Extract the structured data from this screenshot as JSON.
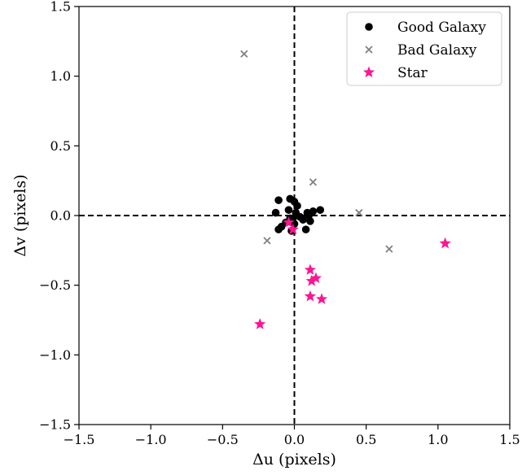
{
  "chart_data": {
    "type": "scatter",
    "xlabel": "Δu (pixels)",
    "ylabel": "Δv (pixels)",
    "xlim": [
      -1.5,
      1.5
    ],
    "ylim": [
      -1.5,
      1.5
    ],
    "xticks": [
      "−1.5",
      "−1.0",
      "−0.5",
      "0.0",
      "0.5",
      "1.0",
      "1.5"
    ],
    "yticks": [
      "−1.5",
      "−1.0",
      "−0.5",
      "0.0",
      "0.5",
      "1.0",
      "1.5"
    ],
    "xtick_values": [
      -1.5,
      -1.0,
      -0.5,
      0.0,
      0.5,
      1.0,
      1.5
    ],
    "ytick_values": [
      -1.5,
      -1.0,
      -0.5,
      0.0,
      0.5,
      1.0,
      1.5
    ],
    "grid": false,
    "reference_lines": {
      "x": 0,
      "y": 0,
      "style": "dashed"
    },
    "legend_position": "top-right",
    "series": [
      {
        "name": "Good Galaxy",
        "marker": "circle",
        "color": "#000000",
        "points": [
          [
            -0.11,
            0.11
          ],
          [
            -0.03,
            0.12
          ],
          [
            0.0,
            0.1
          ],
          [
            0.02,
            0.07
          ],
          [
            -0.13,
            0.02
          ],
          [
            -0.04,
            0.04
          ],
          [
            0.01,
            0.02
          ],
          [
            0.04,
            -0.01
          ],
          [
            0.06,
            -0.03
          ],
          [
            0.09,
            0.02
          ],
          [
            0.11,
            -0.04
          ],
          [
            0.13,
            0.03
          ],
          [
            0.18,
            0.04
          ],
          [
            -0.01,
            -0.02
          ],
          [
            -0.06,
            -0.05
          ],
          [
            -0.09,
            -0.08
          ],
          [
            -0.11,
            -0.1
          ],
          [
            -0.03,
            -0.02
          ],
          [
            0.0,
            -0.06
          ],
          [
            0.08,
            -0.1
          ],
          [
            -0.02,
            -0.11
          ],
          [
            0.1,
            0.0
          ]
        ]
      },
      {
        "name": "Bad Galaxy",
        "marker": "x",
        "color": "#808080",
        "points": [
          [
            -0.35,
            1.16
          ],
          [
            0.13,
            0.24
          ],
          [
            -0.19,
            -0.18
          ],
          [
            0.45,
            0.02
          ],
          [
            0.66,
            -0.24
          ]
        ]
      },
      {
        "name": "Star",
        "marker": "star",
        "color": "#ff1493",
        "points": [
          [
            -0.04,
            -0.05
          ],
          [
            -0.01,
            -0.1
          ],
          [
            1.05,
            -0.2
          ],
          [
            0.11,
            -0.39
          ],
          [
            0.15,
            -0.45
          ],
          [
            0.12,
            -0.47
          ],
          [
            0.11,
            -0.58
          ],
          [
            0.19,
            -0.6
          ],
          [
            -0.24,
            -0.78
          ]
        ]
      }
    ]
  }
}
